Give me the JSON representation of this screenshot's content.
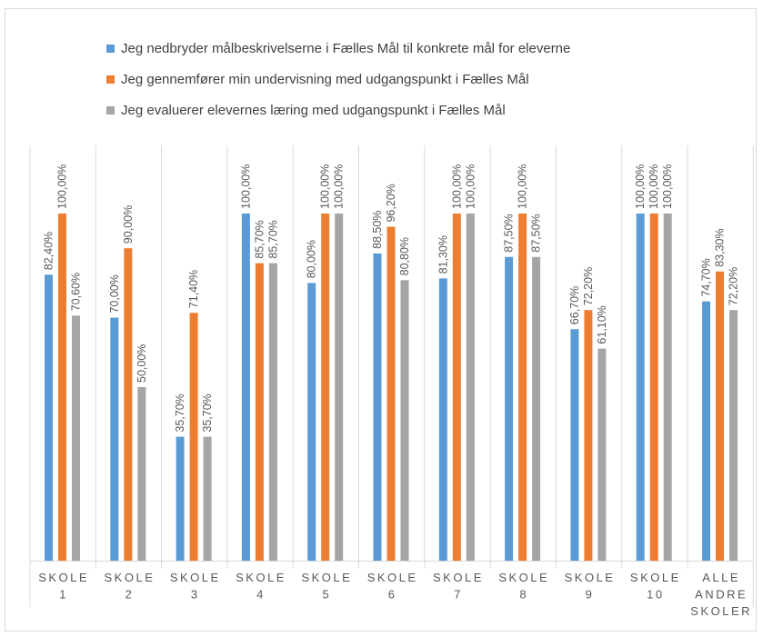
{
  "chart_data": {
    "type": "bar",
    "categories": [
      [
        "SKOLE",
        "1"
      ],
      [
        "SKOLE",
        "2"
      ],
      [
        "SKOLE",
        "3"
      ],
      [
        "SKOLE",
        "4"
      ],
      [
        "SKOLE",
        "5"
      ],
      [
        "SKOLE",
        "6"
      ],
      [
        "SKOLE",
        "7"
      ],
      [
        "SKOLE",
        "8"
      ],
      [
        "SKOLE",
        "9"
      ],
      [
        "SKOLE",
        "10"
      ],
      [
        "ALLE",
        "ANDRE",
        "SKOLER"
      ]
    ],
    "series": [
      {
        "name": "Jeg nedbryder målbeskrivelserne i Fælles Mål til konkrete mål for eleverne",
        "color": "#5b9bd5",
        "values": [
          82.4,
          70.0,
          35.7,
          100.0,
          80.0,
          88.5,
          81.3,
          87.5,
          66.7,
          100.0,
          74.7
        ],
        "labels": [
          "82,40%",
          "70,00%",
          "35,70%",
          "100,00%",
          "80,00%",
          "88,50%",
          "81,30%",
          "87,50%",
          "66,70%",
          "100,00%",
          "74,70%"
        ]
      },
      {
        "name": "Jeg gennemfører min undervisning med udgangspunkt i Fælles Mål",
        "color": "#ed7d31",
        "values": [
          100.0,
          90.0,
          71.4,
          85.7,
          100.0,
          96.2,
          100.0,
          100.0,
          72.2,
          100.0,
          83.3
        ],
        "labels": [
          "100,00%",
          "90,00%",
          "71,40%",
          "85,70%",
          "100,00%",
          "96,20%",
          "100,00%",
          "100,00%",
          "72,20%",
          "100,00%",
          "83,30%"
        ]
      },
      {
        "name": "Jeg evaluerer elevernes læring med udgangspunkt i Fælles Mål",
        "color": "#a5a5a5",
        "values": [
          70.6,
          50.0,
          35.7,
          85.7,
          100.0,
          80.8,
          100.0,
          87.5,
          61.1,
          100.0,
          72.2
        ],
        "labels": [
          "70,60%",
          "50,00%",
          "35,70%",
          "85,70%",
          "100,00%",
          "80,80%",
          "100,00%",
          "87,50%",
          "61,10%",
          "100,00%",
          "72,20%"
        ]
      }
    ],
    "ylim": [
      0,
      100
    ],
    "grid": false,
    "legend": "top"
  }
}
